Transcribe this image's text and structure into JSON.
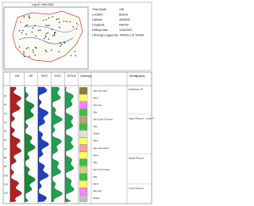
{
  "header": {
    "log_id": "Log ID: SW-0364"
  },
  "info": [
    {
      "label": "Total Depth",
      "value": "128"
    },
    {
      "label": "Location",
      "value": "Bulund"
    },
    {
      "label": "Latitude",
      "value": "4626000"
    },
    {
      "label": "Longitude",
      "value": "646700"
    },
    {
      "label": "Drilling Date",
      "value": "12/6/2003"
    },
    {
      "label": "Lithology Logged By",
      "value": "TRAVELLIS TATBA"
    }
  ],
  "log": {
    "track_headers": [
      "GR",
      "SP",
      "RHO",
      "RXO",
      "TOTLB"
    ],
    "lithology_title": "Lithology",
    "stratigraphy_title": "Stratigraphy",
    "depths": [
      "10",
      "20",
      "30",
      "40",
      "50",
      "60",
      "70",
      "80",
      "90",
      "100",
      "110",
      "120"
    ],
    "lithology": [
      "Clay and sand",
      "Sand",
      "Silty clay",
      "Clay",
      "Sand Clay & Gravel",
      "Clay",
      "Gravel",
      "Sand",
      "Clay and Gravel",
      "Sand",
      "Clay",
      "Sand and Gravel",
      "Clay",
      "Sand",
      "Silty clay",
      "Gravel"
    ],
    "stratigraphy": [
      "Quaternary (?)",
      "Upper Pliocene - Lower Pleistocene",
      "Middle Pliocene",
      "Lower Pliocene"
    ]
  }
}
